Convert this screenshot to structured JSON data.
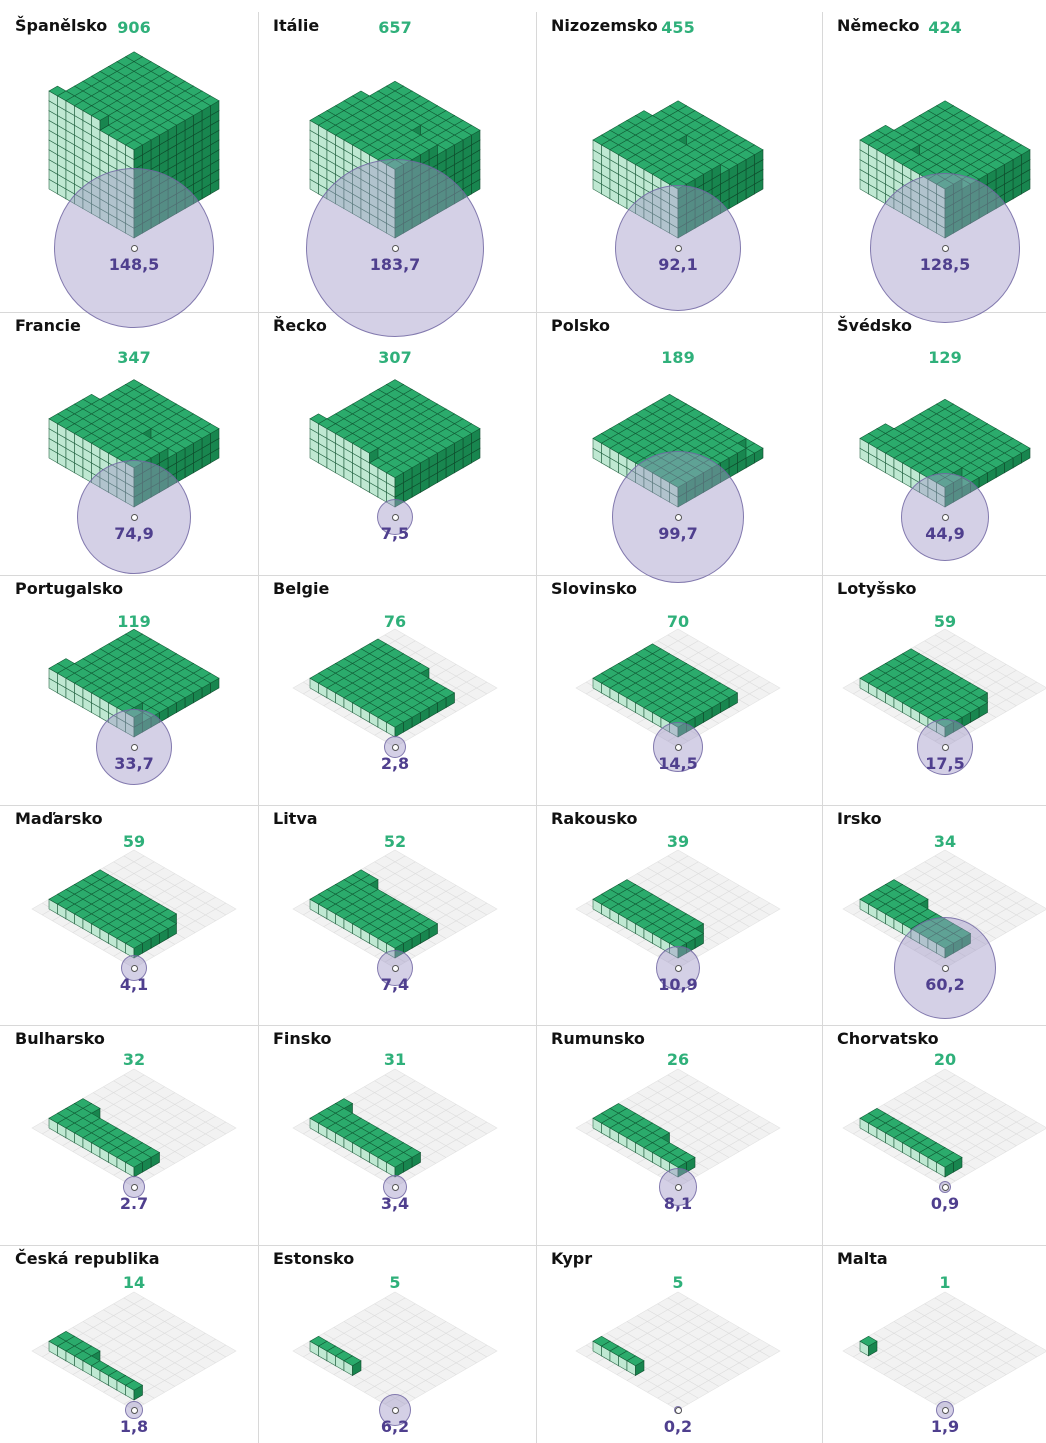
{
  "chart_data": {
    "type": "isometric-unit-and-bubble",
    "panels": [
      {
        "country": "Španělsko",
        "count": 906,
        "value_label": "148,5",
        "value": 148.5
      },
      {
        "country": "Itálie",
        "count": 657,
        "value_label": "183,7",
        "value": 183.7
      },
      {
        "country": "Nizozemsko",
        "count": 455,
        "value_label": "92,1",
        "value": 92.1
      },
      {
        "country": "Německo",
        "count": 424,
        "value_label": "128,5",
        "value": 128.5
      },
      {
        "country": "Francie",
        "count": 347,
        "value_label": "74,9",
        "value": 74.9
      },
      {
        "country": "Řecko",
        "count": 307,
        "value_label": "7,5",
        "value": 7.5
      },
      {
        "country": "Polsko",
        "count": 189,
        "value_label": "99,7",
        "value": 99.7
      },
      {
        "country": "Švédsko",
        "count": 129,
        "value_label": "44,9",
        "value": 44.9
      },
      {
        "country": "Portugalsko",
        "count": 119,
        "value_label": "33,7",
        "value": 33.7
      },
      {
        "country": "Belgie",
        "count": 76,
        "value_label": "2,8",
        "value": 2.8
      },
      {
        "country": "Slovinsko",
        "count": 70,
        "value_label": "14,5",
        "value": 14.5
      },
      {
        "country": "Lotyšsko",
        "count": 59,
        "value_label": "17,5",
        "value": 17.5
      },
      {
        "country": "Maďarsko",
        "count": 59,
        "value_label": "4,1",
        "value": 4.1
      },
      {
        "country": "Litva",
        "count": 52,
        "value_label": "7,4",
        "value": 7.4
      },
      {
        "country": "Rakousko",
        "count": 39,
        "value_label": "10,9",
        "value": 10.9
      },
      {
        "country": "Irsko",
        "count": 34,
        "value_label": "60,2",
        "value": 60.2
      },
      {
        "country": "Bulharsko",
        "count": 32,
        "value_label": "2.7",
        "value": 2.7
      },
      {
        "country": "Finsko",
        "count": 31,
        "value_label": "3,4",
        "value": 3.4
      },
      {
        "country": "Rumunsko",
        "count": 26,
        "value_label": "8,1",
        "value": 8.1
      },
      {
        "country": "Chorvatsko",
        "count": 20,
        "value_label": "0,9",
        "value": 0.9
      },
      {
        "country": "Česká republika",
        "count": 14,
        "value_label": "1,8",
        "value": 1.8
      },
      {
        "country": "Estonsko",
        "count": 5,
        "value_label": "6,2",
        "value": 6.2
      },
      {
        "country": "Kypr",
        "count": 5,
        "value_label": "0,2",
        "value": 0.2
      },
      {
        "country": "Malta",
        "count": 1,
        "value_label": "1,9",
        "value": 1.9
      }
    ],
    "colors": {
      "cube_top": "#2bab6c",
      "cube_left": "#bfe8d2",
      "cube_right": "#18864f",
      "count_text": "#2fb07a",
      "value_text": "#4f3f8e",
      "bubble_fill": "#a096c8",
      "floor": "#f2f2f2"
    }
  }
}
